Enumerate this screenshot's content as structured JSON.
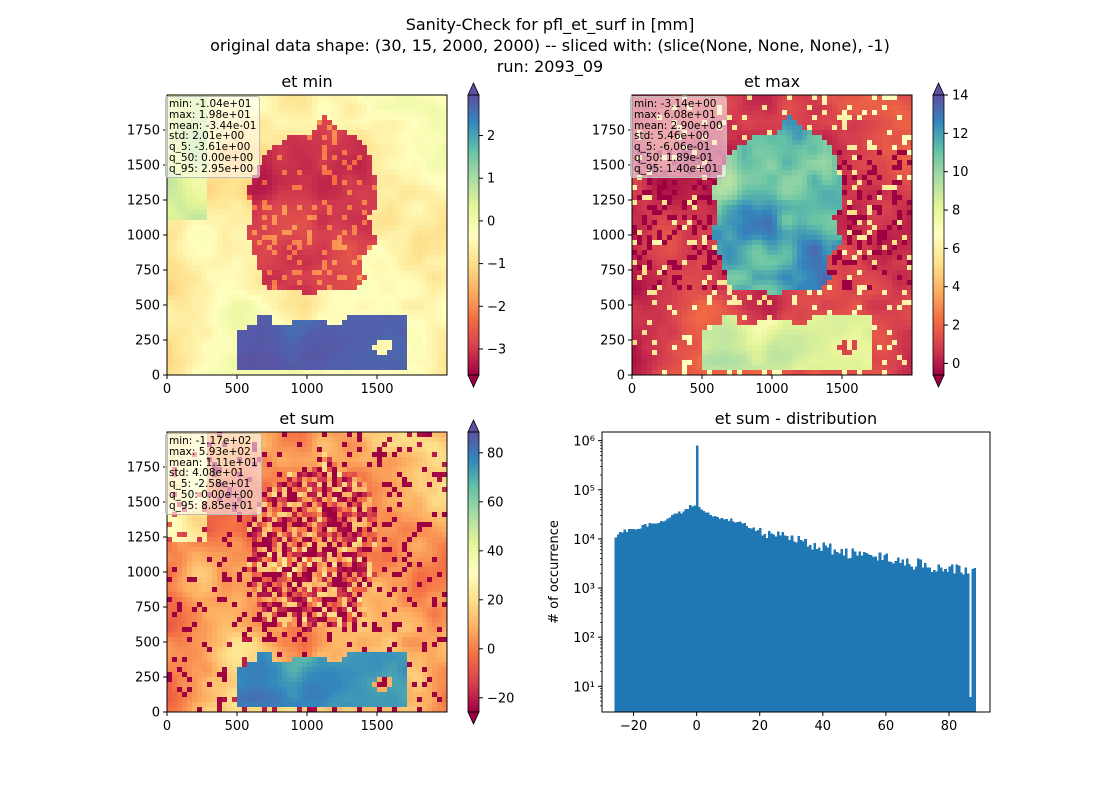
{
  "figure": {
    "title_lines": [
      "Sanity-Check for pfl_et_surf in [mm]",
      "original data shape: (30, 15, 2000, 2000) -- sliced with: (slice(None, None, None), -1)",
      "run: 2093_09"
    ]
  },
  "colormap": "Spectral",
  "chart_data": [
    {
      "type": "heatmap",
      "title": "et min",
      "xlim": [
        0,
        2000
      ],
      "ylim": [
        0,
        2000
      ],
      "xticks": [
        0,
        500,
        1000,
        1500
      ],
      "yticks": [
        0,
        250,
        500,
        750,
        1000,
        1250,
        1500,
        1750
      ],
      "colorbar": {
        "vmin": -3.61,
        "vmax": 2.95,
        "ticks": [
          -3,
          -2,
          -1,
          0,
          1,
          2
        ],
        "extend": "both"
      },
      "stats": [
        "min: -1.04e+01",
        "max: 1.98e+01",
        "mean: -3.44e-01",
        "std: 2.01e+00",
        "q_5: -3.61e+00",
        "q_50: 0.00e+00",
        "q_95: 2.95e+00"
      ]
    },
    {
      "type": "heatmap",
      "title": "et max",
      "xlim": [
        0,
        2000
      ],
      "ylim": [
        0,
        2000
      ],
      "xticks": [
        0,
        500,
        1000,
        1500
      ],
      "yticks": [
        0,
        250,
        500,
        750,
        1000,
        1250,
        1500,
        1750
      ],
      "colorbar": {
        "vmin": -0.606,
        "vmax": 14.0,
        "ticks": [
          0,
          2,
          4,
          6,
          8,
          10,
          12,
          14
        ],
        "extend": "both"
      },
      "stats": [
        "min: -3.14e+00",
        "max: 6.08e+01",
        "mean: 2.90e+00",
        "std: 5.46e+00",
        "q_5: -6.06e-01",
        "q_50: 1.89e-01",
        "q_95: 1.40e+01"
      ]
    },
    {
      "type": "heatmap",
      "title": "et sum",
      "xlim": [
        0,
        2000
      ],
      "ylim": [
        0,
        2000
      ],
      "xticks": [
        0,
        500,
        1000,
        1500
      ],
      "yticks": [
        0,
        250,
        500,
        750,
        1000,
        1250,
        1500,
        1750
      ],
      "colorbar": {
        "vmin": -25.8,
        "vmax": 88.5,
        "ticks": [
          -20,
          0,
          20,
          40,
          60,
          80
        ],
        "extend": "both"
      },
      "stats": [
        "min: -1.17e+02",
        "max: 5.93e+02",
        "mean: 1.11e+01",
        "std: 4.08e+01",
        "q_5: -2.58e+01",
        "q_50: 0.00e+00",
        "q_95: 8.85e+01"
      ]
    },
    {
      "type": "bar",
      "subtype": "histogram",
      "title": "et sum - distribution",
      "xlabel": "",
      "ylabel": "# of occurrence",
      "yscale": "log",
      "xlim": [
        -30,
        93
      ],
      "ylim": [
        3,
        1500000
      ],
      "xticks": [
        -20,
        0,
        20,
        40,
        60,
        80
      ],
      "yticks": [
        {
          "value": 10,
          "label": "10¹"
        },
        {
          "value": 100,
          "label": "10²"
        },
        {
          "value": 1000,
          "label": "10³"
        },
        {
          "value": 10000,
          "label": "10⁴"
        },
        {
          "value": 100000,
          "label": "10⁵"
        },
        {
          "value": 1000000,
          "label": "10⁶"
        }
      ],
      "color": "#1f77b4",
      "bins": {
        "start": -26,
        "end": 88.5,
        "count": 160
      },
      "profile": [
        [
          -26,
          10000
        ],
        [
          -25,
          13000
        ],
        [
          -20,
          16000
        ],
        [
          -15,
          20000
        ],
        [
          -10,
          25000
        ],
        [
          -5,
          35000
        ],
        [
          -1,
          50000
        ],
        [
          1,
          40000
        ],
        [
          5,
          30000
        ],
        [
          10,
          25000
        ],
        [
          15,
          20000
        ],
        [
          20,
          14000
        ],
        [
          30,
          10000
        ],
        [
          40,
          7000
        ],
        [
          50,
          5000
        ],
        [
          60,
          4000
        ],
        [
          70,
          3200
        ],
        [
          80,
          2500
        ],
        [
          88.5,
          2000
        ]
      ],
      "spikes": [
        {
          "x": 0,
          "value": 800000
        },
        {
          "x": 86.8,
          "value": 6
        }
      ]
    }
  ]
}
